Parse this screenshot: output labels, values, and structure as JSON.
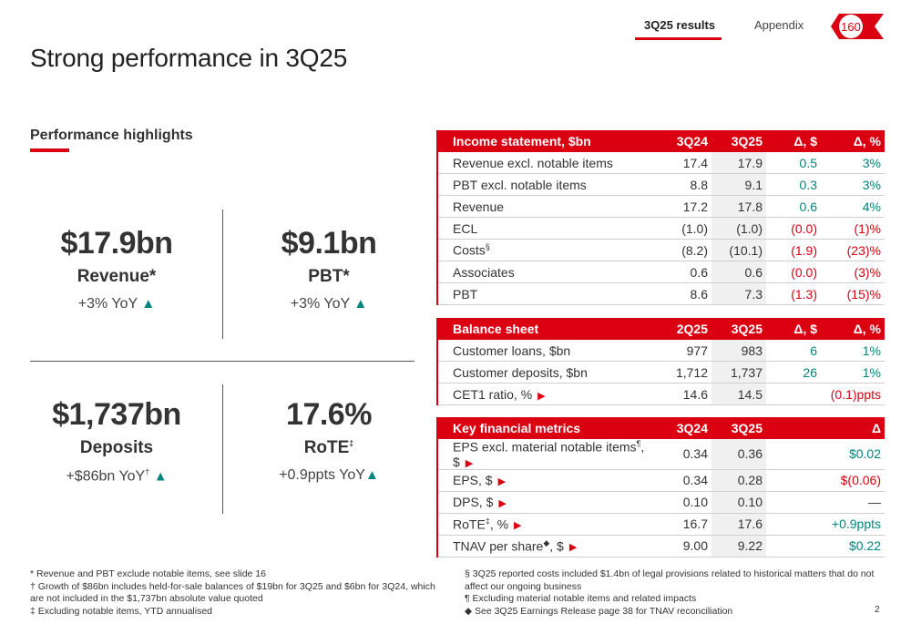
{
  "nav": {
    "tab1": "3Q25 results",
    "tab2": "Appendix",
    "logo_text": "160"
  },
  "title": "Strong performance in 3Q25",
  "highlights": {
    "heading": "Performance highlights",
    "revenue": {
      "value": "$17.9bn",
      "label": "Revenue*",
      "change": "+3% YoY"
    },
    "pbt": {
      "value": "$9.1bn",
      "label": "PBT*",
      "change": "+3% YoY"
    },
    "deposits": {
      "value": "$1,737bn",
      "label": "Deposits",
      "change": "+$86bn YoY",
      "change_mark": "†"
    },
    "rote": {
      "value": "17.6%",
      "label": "RoTE",
      "label_mark": "‡",
      "change": "+0.9ppts YoY"
    },
    "up_arrow": "▲"
  },
  "income": {
    "headers": [
      "Income statement, $bn",
      "3Q24",
      "3Q25",
      "Δ, $",
      "Δ, %"
    ],
    "rows": [
      [
        "Revenue excl. notable items",
        "17.4",
        "17.9",
        "0.5",
        "3%"
      ],
      [
        "PBT excl. notable items",
        "8.8",
        "9.1",
        "0.3",
        "3%"
      ],
      [
        "Revenue",
        "17.2",
        "17.8",
        "0.6",
        "4%"
      ],
      [
        "ECL",
        "(1.0)",
        "(1.0)",
        "(0.0)",
        "(1)%"
      ],
      [
        "Costs",
        "(8.2)",
        "(10.1)",
        "(1.9)",
        "(23)%"
      ],
      [
        "Associates",
        "0.6",
        "0.6",
        "(0.0)",
        "(3)%"
      ],
      [
        "PBT",
        "8.6",
        "7.3",
        "(1.3)",
        "(15)%"
      ]
    ],
    "costs_mark": "§"
  },
  "balance": {
    "headers": [
      "Balance sheet",
      "2Q25",
      "3Q25",
      "Δ, $",
      "Δ, %"
    ],
    "rows": [
      [
        "Customer loans, $bn",
        "977",
        "983",
        "6",
        "1%"
      ],
      [
        "Customer deposits, $bn",
        "1,712",
        "1,737",
        "26",
        "1%"
      ],
      [
        "CET1 ratio, %",
        "14.6",
        "14.5",
        "(0.1)ppts"
      ]
    ]
  },
  "metrics": {
    "headers": [
      "Key financial metrics",
      "3Q24",
      "3Q25",
      "Δ"
    ],
    "rows": [
      {
        "label": "EPS excl. material notable items",
        "mark": "¶",
        "suffix": ", $",
        "a": "0.34",
        "b": "0.36",
        "d": "$0.02"
      },
      {
        "label": "EPS, $",
        "mark": "",
        "suffix": "",
        "a": "0.34",
        "b": "0.28",
        "d": "$(0.06)"
      },
      {
        "label": "DPS, $",
        "mark": "",
        "suffix": "",
        "a": "0.10",
        "b": "0.10",
        "d": "—"
      },
      {
        "label": "RoTE",
        "mark": "‡",
        "suffix": ", %",
        "a": "16.7",
        "b": "17.6",
        "d": "+0.9ppts"
      },
      {
        "label": "TNAV per share",
        "mark": "◆",
        "suffix": ", $",
        "a": "9.00",
        "b": "9.22",
        "d": "$0.22"
      }
    ]
  },
  "caret": "▶",
  "footnotes": {
    "left": [
      "* Revenue and PBT exclude notable items, see slide 16",
      "† Growth of $86bn includes held-for-sale balances of $19bn for 3Q25 and $6bn for 3Q24, which are not included in the $1,737bn absolute value quoted",
      "‡ Excluding notable items, YTD annualised"
    ],
    "right": [
      "§ 3Q25 reported costs included $1.4bn of legal provisions related to historical matters that do not affect our ongoing business",
      "¶ Excluding material notable items and related impacts",
      "◆ See 3Q25 Earnings Release page 38 for TNAV reconciliation"
    ]
  },
  "page_number": "2",
  "colors": {
    "accent": "#db0011",
    "positive": "#00847f"
  }
}
